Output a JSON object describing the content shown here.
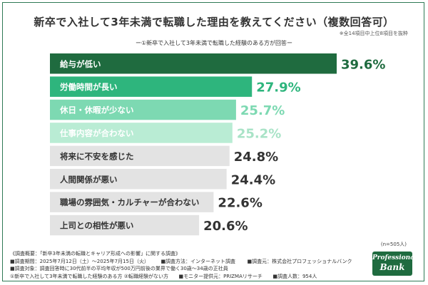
{
  "title": "新卒で入社して3年未満で転職した理由を教えてください（複数回答可）",
  "note": "※全14項目中上位8項目を抜粋",
  "subtitle": "ー①新卒で入社して3年未満で転職した経験のある方が回答ー",
  "sample_size": "(n=505人)",
  "footer": {
    "line1": "《調査概要：「新卒3年未満の転職とキャリア形成への影響」に関する調査》",
    "line2a": "■調査期間：2025年7月12日（土）〜2025年7月15日（火）",
    "line2b": "■調査方法：インターネット調査",
    "line2c": "■調査元：株式会社プロフェッショナルバンク",
    "line3": "■調査対象：調査回答時に30代前半の平均年収が500万円前後の業界で働く30歳〜34歳の正社員",
    "line4a": "①新卒で入社して3年未満で転職した経験のある方 ②転職経験がない方",
    "line4b": "■モニター提供元：PRIZMAリサーチ",
    "line4c": "■調査人数：954人"
  },
  "logo": {
    "line1": "Professional",
    "line2": "Bank"
  },
  "colors": {
    "frame": "#2f7a55",
    "top_bar": "#1f6b3f",
    "gray_bar": "#e3e3e3"
  },
  "chart_data": {
    "type": "bar",
    "orientation": "horizontal",
    "unit": "%",
    "xlim": [
      0,
      40
    ],
    "categories": [
      "給与が低い",
      "労働時間が長い",
      "休日・休暇が少ない",
      "仕事内容が合わない",
      "将来に不安を感じた",
      "人間関係が悪い",
      "職場の雰囲気・カルチャーが合わない",
      "上司との相性が悪い"
    ],
    "values": [
      39.6,
      27.9,
      25.7,
      25.2,
      24.8,
      24.4,
      22.6,
      20.6
    ],
    "value_labels": [
      "39.6%",
      "27.9%",
      "25.7%",
      "25.2%",
      "24.8%",
      "24.4%",
      "22.6%",
      "20.6%"
    ],
    "bar_colors": [
      "#1f6b3f",
      "#2eb57d",
      "#7dd9b2",
      "#b9ecd4",
      "#e3e3e3",
      "#e3e3e3",
      "#e3e3e3",
      "#e3e3e3"
    ],
    "label_colors": [
      "#ffffff",
      "#ffffff",
      "#ffffff",
      "#ffffff",
      "#333333",
      "#333333",
      "#333333",
      "#333333"
    ],
    "value_colors": [
      "#1f6b3f",
      "#2eb57d",
      "#7dd9b2",
      "#a9e3c7",
      "#333333",
      "#333333",
      "#333333",
      "#333333"
    ]
  }
}
